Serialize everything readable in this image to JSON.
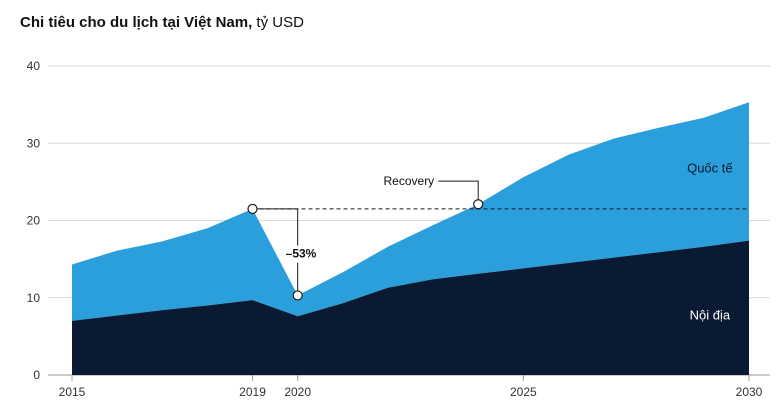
{
  "title": {
    "main": "Chi tiêu cho du lịch tại Việt Nam,",
    "unit": " tỷ USD"
  },
  "chart_data": {
    "type": "area",
    "stacked": true,
    "x": [
      2015,
      2016,
      2017,
      2018,
      2019,
      2020,
      2021,
      2022,
      2023,
      2024,
      2025,
      2026,
      2027,
      2028,
      2029,
      2030
    ],
    "series": [
      {
        "name": "Nội địa",
        "values": [
          7.0,
          7.7,
          8.4,
          9.0,
          9.7,
          7.6,
          9.3,
          11.3,
          12.4,
          13.1,
          13.8,
          14.5,
          15.2,
          15.9,
          16.6,
          17.4
        ],
        "color": "#0b1a33"
      },
      {
        "name": "Quốc tế",
        "values": [
          7.3,
          8.4,
          8.9,
          10.0,
          11.8,
          2.7,
          4.0,
          5.3,
          7.0,
          9.0,
          11.8,
          14.0,
          15.4,
          16.1,
          16.7,
          17.9
        ],
        "color": "#2a9fdc"
      }
    ],
    "ylim": [
      0,
      40
    ],
    "yticks": [
      0,
      10,
      20,
      30,
      40
    ],
    "xticks": [
      2015,
      2019,
      2020,
      2025,
      2030
    ],
    "grid": true,
    "annotations": {
      "drop_label": "–53%",
      "peak": {
        "x": 2019,
        "y": 21.5
      },
      "trough": {
        "x": 2020,
        "y": 10.3
      },
      "recovery_label": "Recovery",
      "recovery_point": {
        "x": 2024,
        "y": 22.1
      },
      "reference_level": 21.5
    }
  }
}
